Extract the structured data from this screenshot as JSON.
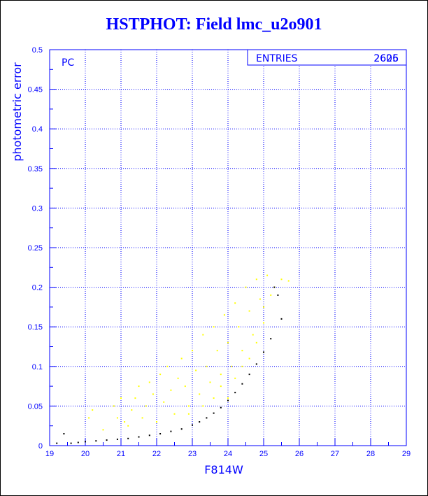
{
  "chart_data": {
    "type": "scatter",
    "title": "HSTPHOT: Field lmc_u2o901",
    "xlabel": "F814W",
    "ylabel": "photometric error",
    "xlim": [
      19,
      29
    ],
    "ylim": [
      0,
      0.5
    ],
    "x_ticks": [
      "19",
      "20",
      "21",
      "22",
      "23",
      "24",
      "25",
      "26",
      "27",
      "28",
      "29"
    ],
    "y_ticks": [
      "0",
      "0.05",
      "0.1",
      "0.15",
      "0.2",
      "0.25",
      "0.3",
      "0.35",
      "0.4",
      "0.45",
      "0.5"
    ],
    "grid": true,
    "panel_label": "PC",
    "stats_box": {
      "label": "ENTRIES",
      "values": [
        "2605",
        "2626"
      ]
    },
    "colors": {
      "title": "#0000ff",
      "axes": "#0000ff",
      "text": "#0000ff",
      "yellow_points": "#ffff00",
      "black_points": "#000000"
    },
    "series": [
      {
        "color": "yellow",
        "points": [
          [
            20.1,
            0.035
          ],
          [
            20.2,
            0.045
          ],
          [
            20.5,
            0.02
          ],
          [
            20.8,
            0.05
          ],
          [
            20.9,
            0.035
          ],
          [
            21.0,
            0.06
          ],
          [
            21.1,
            0.03
          ],
          [
            21.2,
            0.025
          ],
          [
            21.3,
            0.045
          ],
          [
            21.4,
            0.06
          ],
          [
            21.5,
            0.075
          ],
          [
            21.6,
            0.035
          ],
          [
            21.7,
            0.05
          ],
          [
            21.8,
            0.08
          ],
          [
            21.9,
            0.065
          ],
          [
            22.0,
            0.03
          ],
          [
            22.1,
            0.09
          ],
          [
            22.2,
            0.055
          ],
          [
            22.3,
            0.1
          ],
          [
            22.4,
            0.07
          ],
          [
            22.5,
            0.04
          ],
          [
            22.6,
            0.085
          ],
          [
            22.7,
            0.11
          ],
          [
            22.8,
            0.075
          ],
          [
            22.9,
            0.05
          ],
          [
            23.0,
            0.12
          ],
          [
            23.1,
            0.095
          ],
          [
            23.2,
            0.065
          ],
          [
            23.3,
            0.14
          ],
          [
            23.4,
            0.1
          ],
          [
            23.5,
            0.08
          ],
          [
            23.6,
            0.15
          ],
          [
            23.7,
            0.12
          ],
          [
            23.8,
            0.09
          ],
          [
            23.9,
            0.165
          ],
          [
            24.0,
            0.13
          ],
          [
            24.1,
            0.1
          ],
          [
            24.2,
            0.18
          ],
          [
            24.3,
            0.15
          ],
          [
            24.4,
            0.12
          ],
          [
            24.5,
            0.2
          ],
          [
            24.6,
            0.17
          ],
          [
            24.7,
            0.14
          ],
          [
            24.8,
            0.21
          ],
          [
            24.9,
            0.185
          ],
          [
            25.0,
            0.155
          ],
          [
            25.1,
            0.215
          ],
          [
            25.2,
            0.19
          ],
          [
            25.3,
            0.2
          ],
          [
            25.5,
            0.21
          ],
          [
            25.7,
            0.208
          ],
          [
            23.8,
            0.075
          ],
          [
            24.0,
            0.06
          ],
          [
            24.2,
            0.085
          ],
          [
            24.4,
            0.1
          ],
          [
            24.6,
            0.11
          ],
          [
            22.9,
            0.04
          ],
          [
            23.3,
            0.05
          ],
          [
            23.6,
            0.06
          ],
          [
            24.8,
            0.13
          ],
          [
            25.0,
            0.175
          ]
        ]
      },
      {
        "color": "black",
        "points": [
          [
            19.2,
            0.003
          ],
          [
            19.4,
            0.015
          ],
          [
            19.6,
            0.003
          ],
          [
            19.8,
            0.004
          ],
          [
            20.0,
            0.005
          ],
          [
            20.3,
            0.006
          ],
          [
            20.6,
            0.007
          ],
          [
            20.9,
            0.008
          ],
          [
            21.2,
            0.009
          ],
          [
            21.5,
            0.011
          ],
          [
            21.8,
            0.013
          ],
          [
            22.1,
            0.015
          ],
          [
            22.4,
            0.018
          ],
          [
            22.7,
            0.021
          ],
          [
            23.0,
            0.026
          ],
          [
            23.2,
            0.03
          ],
          [
            23.4,
            0.035
          ],
          [
            23.6,
            0.041
          ],
          [
            23.8,
            0.048
          ],
          [
            24.0,
            0.057
          ],
          [
            24.2,
            0.067
          ],
          [
            24.4,
            0.078
          ],
          [
            24.6,
            0.09
          ],
          [
            24.8,
            0.103
          ],
          [
            25.0,
            0.118
          ],
          [
            25.2,
            0.135
          ],
          [
            25.4,
            0.19
          ],
          [
            25.5,
            0.16
          ],
          [
            25.3,
            0.2
          ]
        ]
      }
    ]
  }
}
